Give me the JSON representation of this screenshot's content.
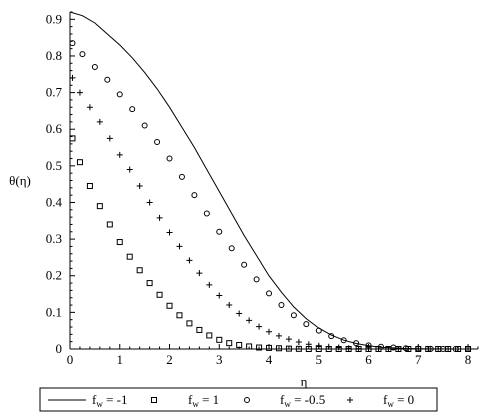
{
  "chart_data": {
    "type": "line",
    "xlabel": "η",
    "ylabel": "θ(η)",
    "xlim": [
      0,
      8.2
    ],
    "ylim": [
      0,
      0.92
    ],
    "xticks": [
      "0",
      "1",
      "2",
      "3",
      "4",
      "5",
      "6",
      "7",
      "8"
    ],
    "yticks": [
      "0",
      "0.1",
      "0.2",
      "0.3",
      "0.4",
      "0.5",
      "0.6",
      "0.7",
      "0.8",
      "0.9"
    ],
    "legend_position": "bottom",
    "series": [
      {
        "name": "f",
        "subscript": "w",
        "value_text": "= -1",
        "marker": "line",
        "x": [
          0,
          0.25,
          0.5,
          0.75,
          1,
          1.25,
          1.5,
          1.75,
          2,
          2.25,
          2.5,
          2.75,
          3,
          3.25,
          3.5,
          3.75,
          4,
          4.25,
          4.5,
          4.75,
          5,
          5.25,
          5.5,
          5.75,
          6,
          6.25,
          6.5,
          6.75,
          7,
          7.25,
          7.5,
          7.75,
          8,
          8.2
        ],
        "y": [
          0.92,
          0.91,
          0.89,
          0.86,
          0.83,
          0.795,
          0.755,
          0.71,
          0.66,
          0.605,
          0.55,
          0.49,
          0.43,
          0.37,
          0.31,
          0.255,
          0.2,
          0.155,
          0.115,
          0.083,
          0.057,
          0.038,
          0.024,
          0.015,
          0.009,
          0.005,
          0.003,
          0.0015,
          0.0008,
          0.0004,
          0.0002,
          0.0001,
          0,
          0
        ]
      },
      {
        "name": "f",
        "subscript": "w",
        "value_text": "= 1",
        "marker": "square",
        "x": [
          0.05,
          0.2,
          0.4,
          0.6,
          0.8,
          1.0,
          1.2,
          1.4,
          1.6,
          1.8,
          2.0,
          2.2,
          2.4,
          2.6,
          2.8,
          3.0,
          3.2,
          3.4,
          3.6,
          3.8,
          4.0,
          4.2,
          4.4,
          4.6,
          4.8,
          5.0,
          5.2,
          5.4,
          5.6,
          5.8,
          6.0,
          6.2,
          6.4,
          6.6,
          6.8,
          7.0,
          7.2,
          7.4,
          7.6,
          7.8,
          8.0
        ],
        "y": [
          0.575,
          0.51,
          0.445,
          0.39,
          0.34,
          0.292,
          0.252,
          0.215,
          0.18,
          0.148,
          0.118,
          0.092,
          0.07,
          0.052,
          0.037,
          0.025,
          0.016,
          0.011,
          0.007,
          0.004,
          0.003,
          0.002,
          0.001,
          0.0005,
          0,
          0,
          0,
          0,
          0,
          0,
          0,
          0,
          0,
          0,
          0,
          0,
          0,
          0,
          0,
          0,
          0
        ]
      },
      {
        "name": "f",
        "subscript": "w",
        "value_text": "= -0.5",
        "marker": "circle",
        "x": [
          0.05,
          0.25,
          0.5,
          0.75,
          1.0,
          1.25,
          1.5,
          1.75,
          2.0,
          2.25,
          2.5,
          2.75,
          3.0,
          3.25,
          3.5,
          3.75,
          4.0,
          4.25,
          4.5,
          4.75,
          5.0,
          5.25,
          5.5,
          5.75,
          6.0,
          6.25,
          6.5,
          6.75,
          7.0,
          7.25,
          7.5,
          7.75,
          8.0
        ],
        "y": [
          0.835,
          0.805,
          0.77,
          0.735,
          0.695,
          0.655,
          0.61,
          0.565,
          0.52,
          0.47,
          0.42,
          0.37,
          0.32,
          0.275,
          0.23,
          0.19,
          0.152,
          0.12,
          0.092,
          0.068,
          0.05,
          0.035,
          0.024,
          0.016,
          0.01,
          0.006,
          0.004,
          0.002,
          0.001,
          0.0005,
          0,
          0,
          0
        ]
      },
      {
        "name": "f",
        "subscript": "w",
        "value_text": "= 0",
        "marker": "plus",
        "x": [
          0.05,
          0.2,
          0.4,
          0.6,
          0.8,
          1.0,
          1.2,
          1.4,
          1.6,
          1.8,
          2.0,
          2.2,
          2.4,
          2.6,
          2.8,
          3.0,
          3.2,
          3.4,
          3.6,
          3.8,
          4.0,
          4.2,
          4.4,
          4.6,
          4.8,
          5.0,
          5.2,
          5.4,
          5.6,
          5.8,
          6.0,
          6.2,
          6.4,
          6.6,
          6.8,
          7.0,
          7.2,
          7.4,
          7.6,
          7.8,
          8.0
        ],
        "y": [
          0.74,
          0.7,
          0.66,
          0.62,
          0.575,
          0.53,
          0.49,
          0.445,
          0.4,
          0.358,
          0.318,
          0.28,
          0.242,
          0.207,
          0.175,
          0.146,
          0.12,
          0.097,
          0.078,
          0.061,
          0.047,
          0.036,
          0.027,
          0.019,
          0.013,
          0.009,
          0.006,
          0.004,
          0.002,
          0.001,
          0.0005,
          0,
          0,
          0,
          0,
          0,
          0,
          0,
          0,
          0,
          0
        ]
      }
    ]
  }
}
